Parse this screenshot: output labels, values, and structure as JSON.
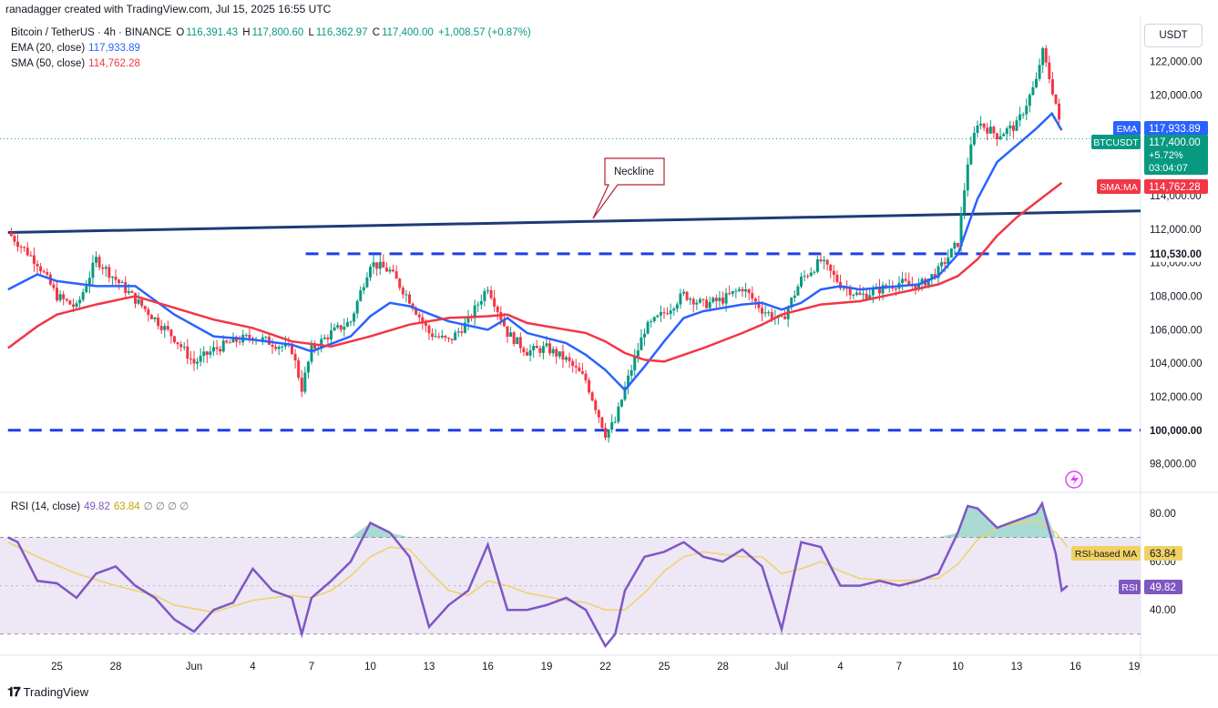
{
  "header": {
    "credit": "ranadagger created with TradingView.com, Jul 15, 2025 16:55 UTC",
    "symbol": "Bitcoin / TetherUS · 4h · BINANCE",
    "ohlc": {
      "o_label": "O",
      "o": "116,391.43",
      "h_label": "H",
      "h": "117,800.60",
      "l_label": "L",
      "l": "116,362.97",
      "c_label": "C",
      "c": "117,400.00",
      "change": "+1,008.57 (+0.87%)"
    },
    "ema_label": "EMA (20, close)",
    "ema_value": "117,933.89",
    "sma_label": "SMA (50, close)",
    "sma_value": "114,762.28",
    "rsi_label": "RSI (14, close)",
    "rsi_value": "49.82",
    "rsi_ma_value": "63.84",
    "rsi_empty": "∅ ∅ ∅ ∅",
    "currency": "USDT"
  },
  "footer": {
    "brand": "TradingView"
  },
  "colors": {
    "up": "#089981",
    "down": "#f23645",
    "ema": "#2962ff",
    "sma": "#f23645",
    "rsi": "#7e57c2",
    "rsi_ma": "#f0d264",
    "neckline": "#1e3a78",
    "level": "#1f3ee8",
    "rsi_band": "#ede7f6"
  },
  "chart_data": [
    {
      "type": "candlestick",
      "title": "Bitcoin / TetherUS · 4h · BINANCE",
      "y_ticks": [
        "122,000.00",
        "120,000.00",
        "114,000.00",
        "112,000.00",
        "110,000.00",
        "108,000.00",
        "106,000.00",
        "104,000.00",
        "102,000.00",
        "98,000.00"
      ],
      "y_tick_values": [
        122000,
        120000,
        114000,
        112000,
        110000,
        108000,
        106000,
        104000,
        102000,
        98000
      ],
      "ylim": [
        97000,
        123500
      ],
      "x_ticks": [
        "25",
        "28",
        "Jun",
        "4",
        "7",
        "10",
        "13",
        "16",
        "19",
        "22",
        "25",
        "28",
        "Jul",
        "4",
        "7",
        "10",
        "13",
        "16",
        "19"
      ],
      "x_tick_days": [
        -6,
        -3,
        1,
        4,
        7,
        10,
        13,
        16,
        19,
        22,
        25,
        28,
        31,
        34,
        37,
        40,
        43,
        46,
        49
      ],
      "x_axis_note": "day-of-period offsets relative to Jun 1 = 1; Jul 1 = 31",
      "close_path": [
        [
          -8.5,
          111800
        ],
        [
          -7,
          110000
        ],
        [
          -6,
          108000
        ],
        [
          -5,
          107300
        ],
        [
          -4,
          110200
        ],
        [
          -3,
          109000
        ],
        [
          -2,
          107800
        ],
        [
          0,
          105500
        ],
        [
          1,
          104000
        ],
        [
          2,
          104800
        ],
        [
          3,
          105300
        ],
        [
          4,
          105600
        ],
        [
          5,
          105200
        ],
        [
          6,
          104800
        ],
        [
          6.5,
          102500
        ],
        [
          7,
          104800
        ],
        [
          8,
          105800
        ],
        [
          9,
          106500
        ],
        [
          10,
          110000
        ],
        [
          11,
          109500
        ],
        [
          12,
          107800
        ],
        [
          13,
          105800
        ],
        [
          14,
          105300
        ],
        [
          15,
          106500
        ],
        [
          16,
          108600
        ],
        [
          17,
          105800
        ],
        [
          18,
          104700
        ],
        [
          19,
          104900
        ],
        [
          20,
          104200
        ],
        [
          21,
          103000
        ],
        [
          22,
          99800
        ],
        [
          22.5,
          100500
        ],
        [
          23,
          102500
        ],
        [
          24,
          106000
        ],
        [
          25,
          107000
        ],
        [
          26,
          108100
        ],
        [
          27,
          107500
        ],
        [
          28,
          107800
        ],
        [
          29,
          108500
        ],
        [
          30,
          107200
        ],
        [
          31,
          106500
        ],
        [
          32,
          109000
        ],
        [
          33,
          110100
        ],
        [
          34,
          108700
        ],
        [
          35,
          108000
        ],
        [
          36,
          108400
        ],
        [
          37,
          108800
        ],
        [
          38,
          108600
        ],
        [
          39,
          109500
        ],
        [
          40,
          111200
        ],
        [
          40.5,
          116000
        ],
        [
          41,
          118400
        ],
        [
          42,
          117600
        ],
        [
          43,
          118200
        ],
        [
          44,
          120800
        ],
        [
          44.3,
          122700
        ],
        [
          45,
          119500
        ],
        [
          45.3,
          117400
        ]
      ],
      "ema_20": [
        [
          -8.5,
          108400
        ],
        [
          -7,
          109300
        ],
        [
          -6,
          108900
        ],
        [
          -4,
          108600
        ],
        [
          -2,
          108600
        ],
        [
          0,
          106900
        ],
        [
          2,
          105600
        ],
        [
          4,
          105400
        ],
        [
          6,
          105100
        ],
        [
          7,
          104700
        ],
        [
          9,
          105600
        ],
        [
          10,
          106800
        ],
        [
          11,
          107600
        ],
        [
          12,
          107400
        ],
        [
          14,
          106500
        ],
        [
          16,
          106000
        ],
        [
          17,
          106700
        ],
        [
          18,
          105800
        ],
        [
          20,
          105200
        ],
        [
          21,
          104500
        ],
        [
          22,
          103600
        ],
        [
          23,
          102400
        ],
        [
          24,
          103800
        ],
        [
          25,
          105300
        ],
        [
          26,
          106700
        ],
        [
          27,
          107100
        ],
        [
          29,
          107500
        ],
        [
          30,
          107600
        ],
        [
          31,
          107200
        ],
        [
          32,
          107600
        ],
        [
          33,
          108400
        ],
        [
          34,
          108600
        ],
        [
          35,
          108400
        ],
        [
          37,
          108600
        ],
        [
          38,
          108700
        ],
        [
          39,
          109200
        ],
        [
          40,
          110500
        ],
        [
          41,
          113800
        ],
        [
          42,
          116000
        ],
        [
          43,
          117000
        ],
        [
          44,
          118000
        ],
        [
          44.8,
          118900
        ],
        [
          45.3,
          117900
        ]
      ],
      "sma_50": [
        [
          -8.5,
          104900
        ],
        [
          -7,
          106200
        ],
        [
          -6,
          106900
        ],
        [
          -4,
          107500
        ],
        [
          -2,
          108000
        ],
        [
          0,
          107300
        ],
        [
          2,
          106600
        ],
        [
          4,
          106100
        ],
        [
          6,
          105300
        ],
        [
          8,
          105000
        ],
        [
          10,
          105600
        ],
        [
          12,
          106300
        ],
        [
          14,
          106700
        ],
        [
          16,
          106800
        ],
        [
          17,
          106900
        ],
        [
          18,
          106400
        ],
        [
          20,
          106000
        ],
        [
          21,
          105800
        ],
        [
          22,
          105300
        ],
        [
          23,
          104600
        ],
        [
          24,
          104200
        ],
        [
          25,
          104100
        ],
        [
          27,
          104900
        ],
        [
          29,
          105800
        ],
        [
          30,
          106300
        ],
        [
          31,
          106900
        ],
        [
          33,
          107500
        ],
        [
          35,
          107700
        ],
        [
          37,
          108200
        ],
        [
          39,
          108700
        ],
        [
          40,
          109200
        ],
        [
          41,
          110200
        ],
        [
          42,
          111600
        ],
        [
          43,
          112700
        ],
        [
          44,
          113600
        ],
        [
          45.3,
          114762
        ]
      ],
      "neckline": [
        [
          -8.5,
          111800
        ],
        [
          50,
          113100
        ]
      ],
      "levels": [
        {
          "value": 110530,
          "label": "110,530.00",
          "from_day": 6.7
        },
        {
          "value": 100000,
          "label": "100,000.00",
          "from_day": -8.5
        }
      ],
      "neckline_label": "Neckline",
      "price_labels": [
        {
          "name": "EMA",
          "value": "117,933.89",
          "price": 117933.89
        },
        {
          "name": "BTCUSDT",
          "value": "117,400.00",
          "extra1": "+5.72%",
          "extra2": "03:04:07",
          "price": 117400
        },
        {
          "name": "SMA:MA",
          "value": "114,762.28",
          "price": 114762.28
        }
      ],
      "last_price": 117400
    },
    {
      "type": "line",
      "title": "RSI (14, close)",
      "y_ticks": [
        "80.00",
        "60.00",
        "40.00"
      ],
      "y_tick_values": [
        80,
        60,
        40
      ],
      "ylim": [
        22,
        86
      ],
      "band": [
        30,
        70
      ],
      "midline": 50,
      "rsi_14": [
        [
          -8.5,
          70
        ],
        [
          -8,
          68
        ],
        [
          -7,
          52
        ],
        [
          -6,
          51
        ],
        [
          -5,
          45
        ],
        [
          -4,
          55
        ],
        [
          -3,
          58
        ],
        [
          -2,
          50
        ],
        [
          -1,
          45
        ],
        [
          0,
          36
        ],
        [
          1,
          31
        ],
        [
          2,
          40
        ],
        [
          3,
          43
        ],
        [
          4,
          57
        ],
        [
          5,
          48
        ],
        [
          6,
          45
        ],
        [
          6.5,
          30
        ],
        [
          7,
          45
        ],
        [
          8,
          52
        ],
        [
          9,
          60
        ],
        [
          10,
          76
        ],
        [
          11,
          72
        ],
        [
          12,
          62
        ],
        [
          13,
          33
        ],
        [
          14,
          42
        ],
        [
          15,
          48
        ],
        [
          16,
          67
        ],
        [
          17,
          40
        ],
        [
          18,
          40
        ],
        [
          19,
          42
        ],
        [
          20,
          45
        ],
        [
          21,
          40
        ],
        [
          22,
          25
        ],
        [
          22.5,
          30
        ],
        [
          23,
          48
        ],
        [
          24,
          62
        ],
        [
          25,
          64
        ],
        [
          26,
          68
        ],
        [
          27,
          62
        ],
        [
          28,
          60
        ],
        [
          29,
          65
        ],
        [
          30,
          58
        ],
        [
          31,
          32
        ],
        [
          32,
          68
        ],
        [
          33,
          66
        ],
        [
          34,
          50
        ],
        [
          35,
          50
        ],
        [
          36,
          52
        ],
        [
          37,
          50
        ],
        [
          38,
          52
        ],
        [
          39,
          55
        ],
        [
          40,
          72
        ],
        [
          40.5,
          83
        ],
        [
          41,
          82
        ],
        [
          42,
          74
        ],
        [
          43,
          77
        ],
        [
          44,
          80
        ],
        [
          44.3,
          84
        ],
        [
          45,
          63
        ],
        [
          45.3,
          48
        ],
        [
          45.6,
          50
        ]
      ],
      "rsi_ma": [
        [
          -8.5,
          68
        ],
        [
          -7,
          62
        ],
        [
          -5,
          55
        ],
        [
          -3,
          50
        ],
        [
          -1,
          46
        ],
        [
          0,
          42
        ],
        [
          2,
          39
        ],
        [
          4,
          44
        ],
        [
          6,
          46
        ],
        [
          7,
          45
        ],
        [
          8,
          48
        ],
        [
          9,
          54
        ],
        [
          10,
          62
        ],
        [
          11,
          66
        ],
        [
          12,
          65
        ],
        [
          13,
          56
        ],
        [
          14,
          48
        ],
        [
          15,
          46
        ],
        [
          16,
          52
        ],
        [
          17,
          50
        ],
        [
          18,
          47
        ],
        [
          20,
          44
        ],
        [
          21,
          43
        ],
        [
          22,
          40
        ],
        [
          23,
          40
        ],
        [
          24,
          47
        ],
        [
          25,
          56
        ],
        [
          26,
          62
        ],
        [
          27,
          64
        ],
        [
          28,
          63
        ],
        [
          29,
          62
        ],
        [
          30,
          62
        ],
        [
          31,
          55
        ],
        [
          32,
          57
        ],
        [
          33,
          60
        ],
        [
          34,
          56
        ],
        [
          35,
          53
        ],
        [
          37,
          52
        ],
        [
          39,
          53
        ],
        [
          40,
          59
        ],
        [
          41,
          69
        ],
        [
          42,
          74
        ],
        [
          43,
          76
        ],
        [
          44,
          77
        ],
        [
          45,
          72
        ],
        [
          45.6,
          66
        ]
      ],
      "labels": [
        {
          "name": "RSI-based MA",
          "value": "63.84",
          "level": 63.84
        },
        {
          "name": "RSI",
          "value": "49.82",
          "level": 49.82
        }
      ]
    }
  ]
}
